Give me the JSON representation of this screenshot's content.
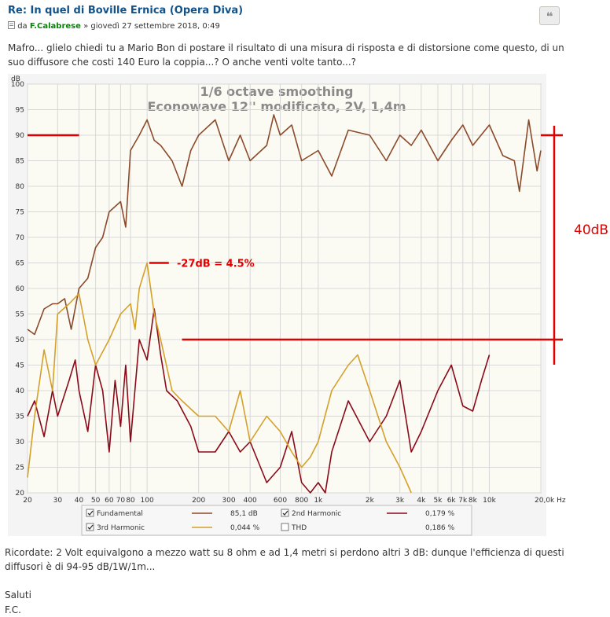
{
  "post": {
    "title": "Re: In quel di Boville Ernica (Opera Diva)",
    "byline_prefix": "da",
    "author": "F.Calabrese",
    "separator": "»",
    "date": "giovedì 27 settembre 2018, 0:49",
    "paragraphs": [
      "Mafro... glielo chiedi tu a Mario Bon di postare il risultato di una misura di risposta e di distorsione come questo, di un suo diffusore che costi 140 Euro la coppia...? O anche venti volte tanto...?",
      "Ricordate: 2 Volt equivalgono a mezzo watt su 8 ohm e ad 1,4 metri si perdono altri 3 dB: dunque l'efficienza di questi diffusori è di 94-95 dB/1W/1m..."
    ],
    "closing": [
      "Saluti",
      "F.C."
    ]
  },
  "chart_data": {
    "type": "line",
    "title": "1/6 octave smoothing",
    "subtitle": "Econowave 12'' modificato, 2V, 1,4m",
    "y_label": "dB",
    "xscale": "log",
    "grid": true,
    "xlim": [
      20,
      20000
    ],
    "ylim": [
      20,
      100
    ],
    "yticks": [
      20,
      25,
      30,
      35,
      40,
      45,
      50,
      55,
      60,
      65,
      70,
      75,
      80,
      85,
      90,
      95,
      100
    ],
    "xticks": [
      20,
      30,
      40,
      50,
      60,
      70,
      80,
      100,
      200,
      300,
      400,
      600,
      800,
      {
        "value": 1000,
        "label": "1k"
      },
      {
        "value": 2000,
        "label": "2k"
      },
      {
        "value": 3000,
        "label": "3k"
      },
      {
        "value": 4000,
        "label": "4k"
      },
      {
        "value": 5000,
        "label": "5k"
      },
      {
        "value": 6000,
        "label": "6k"
      },
      {
        "value": 7000,
        "label": "7k"
      },
      {
        "value": 8000,
        "label": "8k"
      },
      {
        "value": 10000,
        "label": "10k"
      },
      {
        "value": 20000,
        "label": "20,0k Hz"
      }
    ],
    "series": [
      {
        "name": "Fundamental",
        "color": "#8b4a2b",
        "readout": "85,1 dB",
        "x": [
          20,
          22,
          25,
          28,
          30,
          33,
          36,
          40,
          45,
          50,
          55,
          60,
          70,
          75,
          80,
          90,
          100,
          110,
          120,
          140,
          160,
          180,
          200,
          250,
          300,
          350,
          400,
          500,
          550,
          600,
          700,
          800,
          1000,
          1200,
          1500,
          2000,
          2500,
          3000,
          3500,
          4000,
          5000,
          6000,
          7000,
          8000,
          10000,
          12000,
          14000,
          15000,
          17000,
          19000,
          20000
        ],
        "values": [
          52,
          51,
          56,
          57,
          57,
          58,
          52,
          60,
          62,
          68,
          70,
          75,
          77,
          72,
          87,
          90,
          93,
          89,
          88,
          85,
          80,
          87,
          90,
          93,
          85,
          90,
          85,
          88,
          94,
          90,
          92,
          85,
          87,
          82,
          91,
          90,
          85,
          90,
          88,
          91,
          85,
          89,
          92,
          88,
          92,
          86,
          85,
          79,
          93,
          83,
          87
        ]
      },
      {
        "name": "2nd Harmonic",
        "color": "#8b0a1a",
        "readout": "0,179 %",
        "x": [
          20,
          22,
          25,
          28,
          30,
          35,
          38,
          40,
          45,
          50,
          55,
          60,
          65,
          70,
          75,
          80,
          90,
          100,
          110,
          120,
          130,
          150,
          180,
          200,
          250,
          300,
          350,
          400,
          500,
          600,
          700,
          800,
          900,
          1000,
          1100,
          1200,
          1500,
          2000,
          2500,
          3000,
          3500,
          4000,
          5000,
          6000,
          7000,
          8000,
          9000,
          10000
        ],
        "values": [
          35,
          38,
          31,
          40,
          35,
          42,
          46,
          40,
          32,
          45,
          40,
          28,
          42,
          33,
          45,
          30,
          50,
          46,
          56,
          47,
          40,
          38,
          33,
          28,
          28,
          32,
          28,
          30,
          22,
          25,
          32,
          22,
          20,
          22,
          20,
          28,
          38,
          30,
          35,
          42,
          28,
          32,
          40,
          45,
          37,
          36,
          42,
          47
        ]
      },
      {
        "name": "3rd Harmonic",
        "color": "#d4a02a",
        "readout": "0,044 %",
        "x": [
          20,
          22,
          25,
          28,
          30,
          35,
          40,
          45,
          50,
          60,
          70,
          80,
          85,
          90,
          100,
          110,
          120,
          140,
          160,
          200,
          250,
          300,
          350,
          400,
          500,
          600,
          700,
          800,
          900,
          1000,
          1200,
          1500,
          1700,
          2000,
          2500,
          3000,
          3500
        ],
        "values": [
          23,
          35,
          48,
          40,
          55,
          57,
          59,
          50,
          45,
          50,
          55,
          57,
          52,
          60,
          65,
          55,
          50,
          40,
          38,
          35,
          35,
          32,
          40,
          30,
          35,
          32,
          28,
          25,
          27,
          30,
          40,
          45,
          47,
          40,
          30,
          25,
          20
        ]
      }
    ],
    "legend_extra": {
      "name": "THD",
      "readout": "0,186 %"
    },
    "annotations": [
      "-27dB = 4.5%",
      "40dB"
    ],
    "reference_lines": [
      {
        "y": 90,
        "x": [
          20,
          40
        ]
      },
      {
        "y": 65,
        "x": [
          103,
          134
        ]
      },
      {
        "y": 50,
        "x": [
          160,
          20000
        ]
      }
    ],
    "reference_color": "#e00000"
  }
}
